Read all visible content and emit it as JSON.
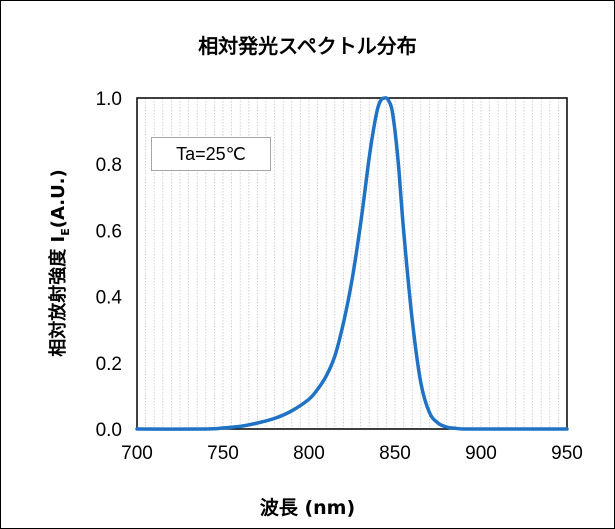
{
  "chart_data": {
    "type": "line",
    "title": "相対発光スペクトル分布",
    "xlabel": "波長 (nm)",
    "ylabel_main": "相対放射強度",
    "ylabel_symbol": "I",
    "ylabel_subscript": "E",
    "ylabel_unit": "(A.U.)",
    "annotation": "Ta=25℃",
    "xlim": [
      700,
      950
    ],
    "ylim": [
      0,
      1.0
    ],
    "x_ticks": [
      "700",
      "750",
      "800",
      "850",
      "900",
      "950"
    ],
    "y_ticks": [
      "0.0",
      "0.2",
      "0.4",
      "0.6",
      "0.8",
      "1.0"
    ],
    "grid": "vertical-minor",
    "line_color": "#1f72c4",
    "series": [
      {
        "x": [
          700,
          740,
          750,
          760,
          770,
          780,
          790,
          800,
          805,
          810,
          815,
          820,
          825,
          830,
          835,
          838,
          840,
          842,
          844,
          845,
          846,
          848,
          850,
          852,
          855,
          860,
          865,
          870,
          875,
          880,
          885,
          890,
          900,
          950
        ],
        "y": [
          0.0,
          0.0,
          0.003,
          0.008,
          0.018,
          0.032,
          0.055,
          0.09,
          0.12,
          0.16,
          0.22,
          0.32,
          0.45,
          0.62,
          0.82,
          0.92,
          0.97,
          0.995,
          1.0,
          1.0,
          0.995,
          0.97,
          0.9,
          0.8,
          0.6,
          0.33,
          0.14,
          0.05,
          0.018,
          0.006,
          0.002,
          0.0,
          0.0,
          0.0
        ]
      }
    ]
  }
}
